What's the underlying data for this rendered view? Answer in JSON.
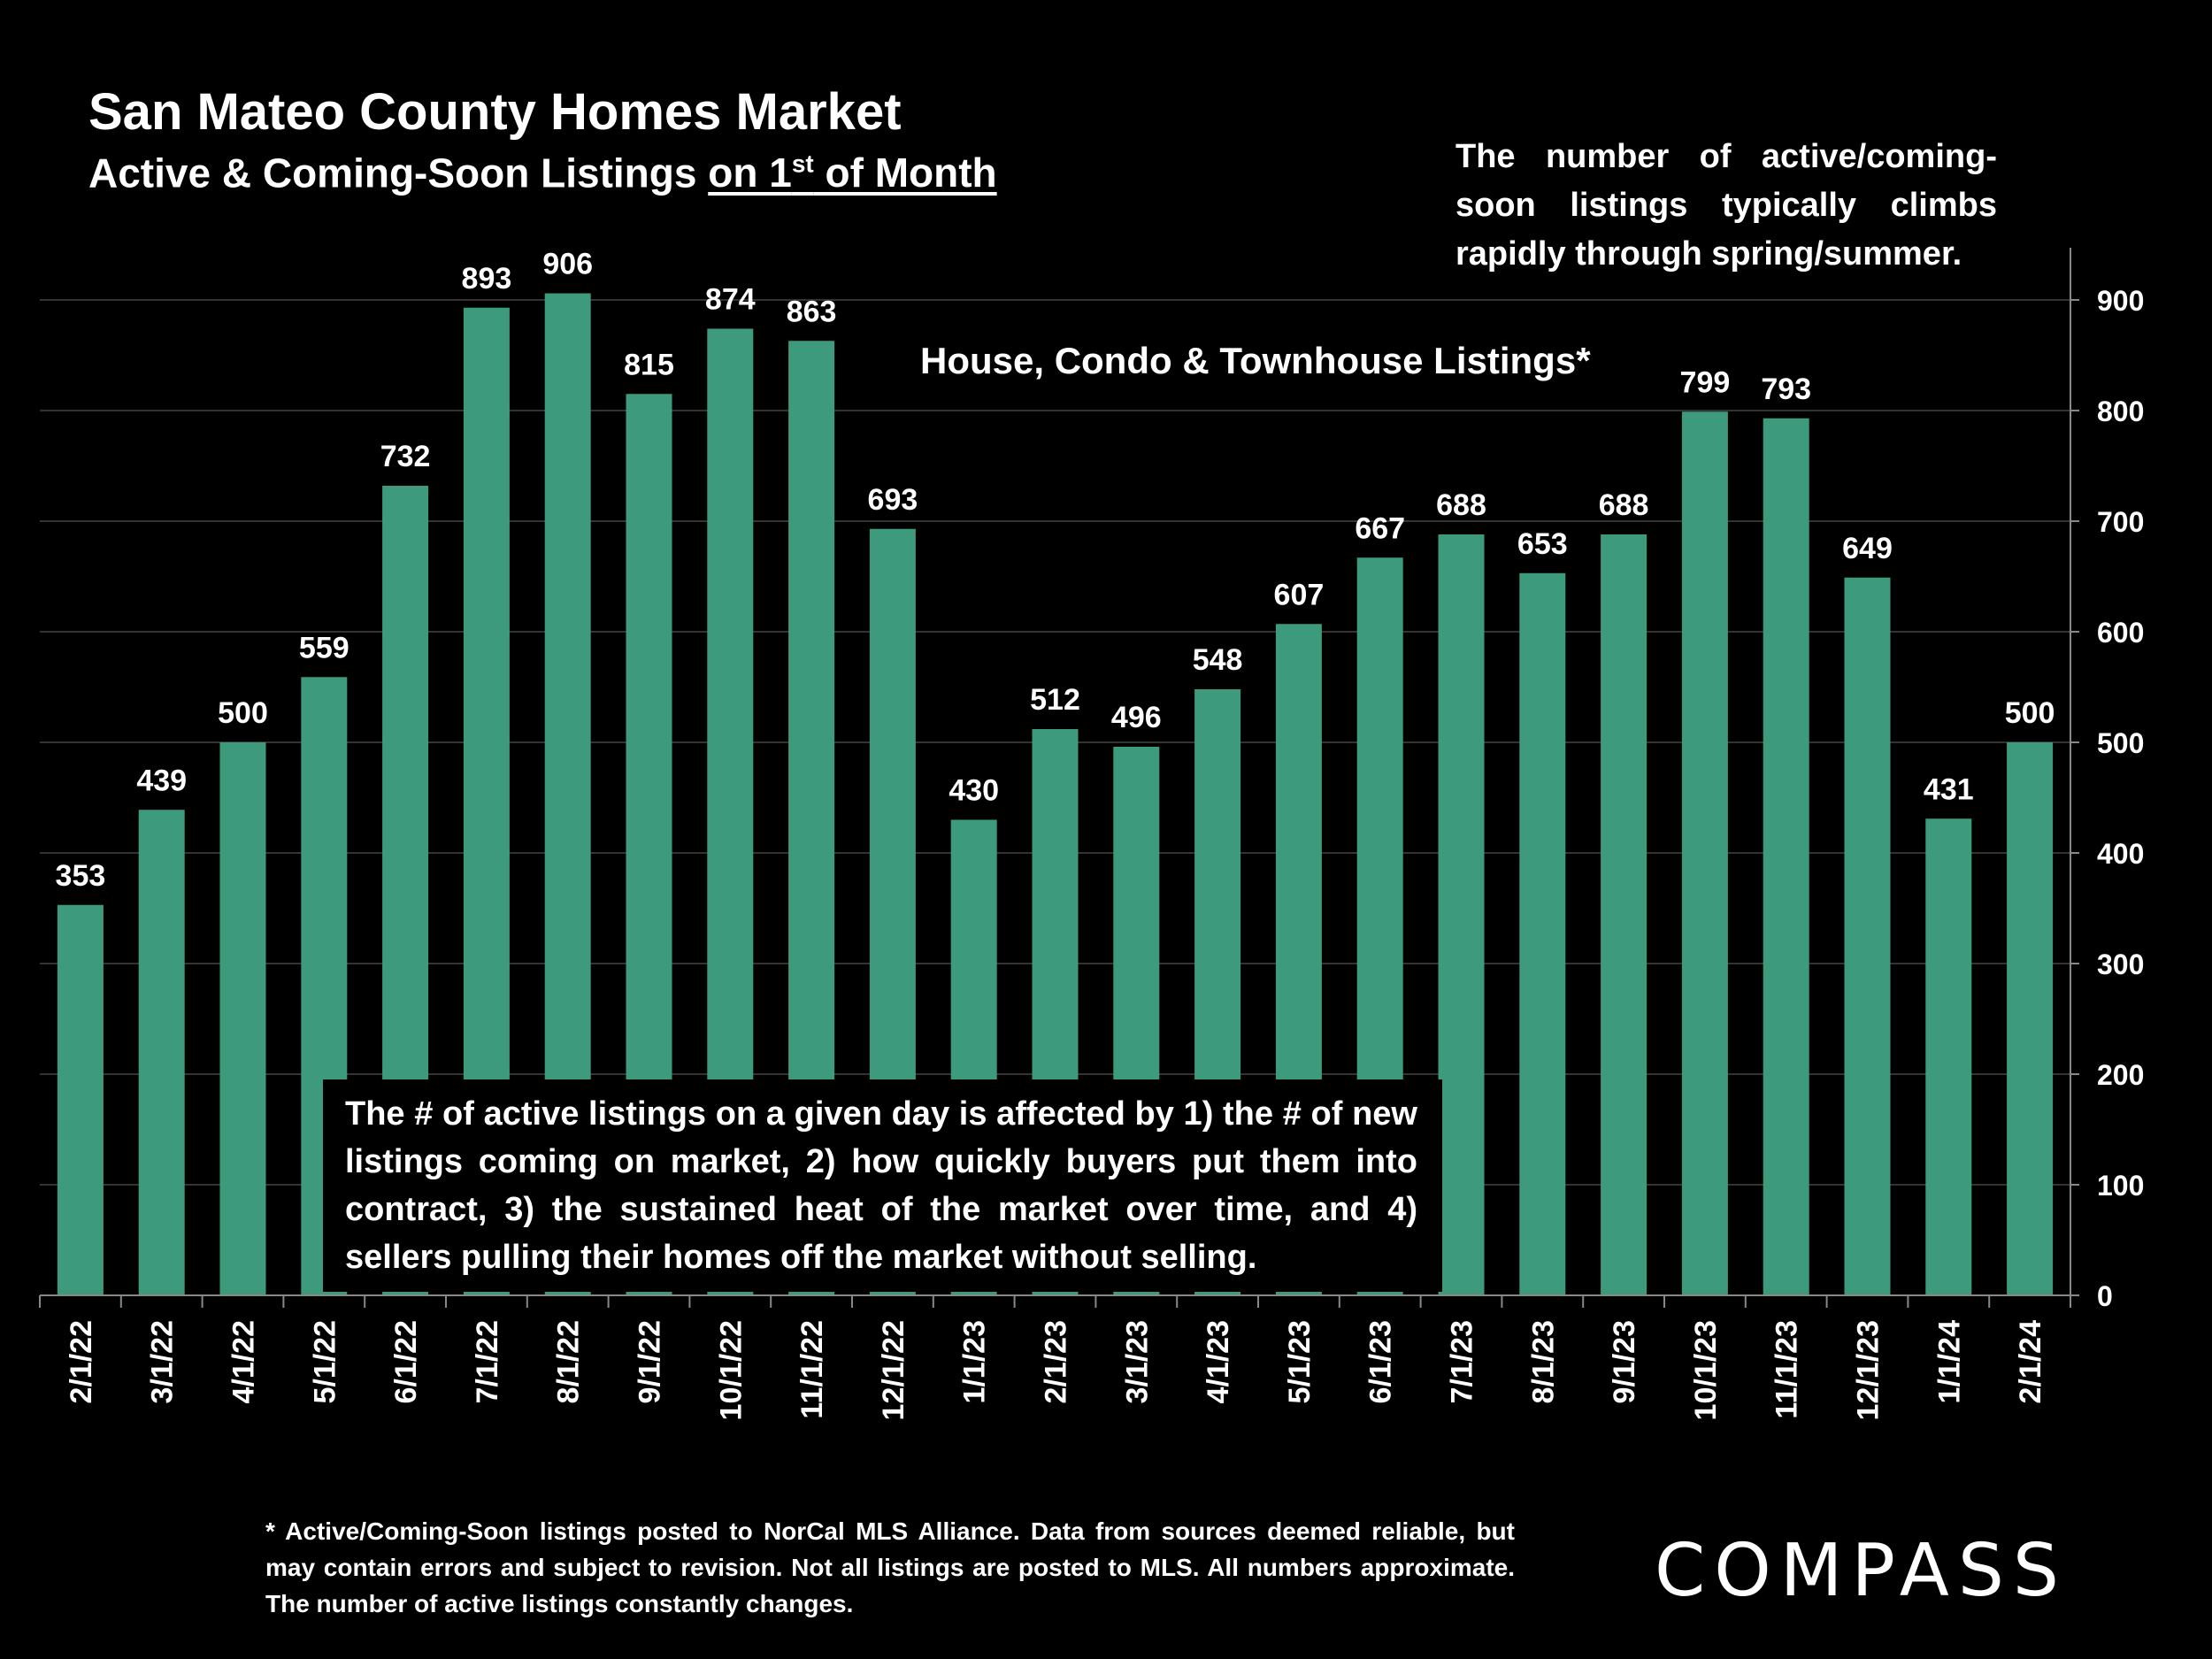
{
  "header": {
    "title": "San Mateo County Homes Market",
    "subtitle_pre": "Active & Coming-Soon Listings ",
    "subtitle_underlined": "on 1",
    "subtitle_sup": "st",
    "subtitle_post": " of Month"
  },
  "notes": {
    "top_right": "The number of active/coming-soon listings typically climbs rapidly through spring/summer.",
    "chart_label": "House, Condo & Townhouse Listings*",
    "annotation": "The # of active listings on a given day is affected by 1) the # of new listings coming on market, 2) how quickly buyers put them into contract, 3) the sustained heat of the market over time, and 4) sellers pulling their homes off the market without selling.",
    "footnote": "* Active/Coming-Soon listings posted to NorCal MLS Alliance.  Data from sources deemed reliable, but may contain errors and subject to revision.  Not all listings are posted to MLS. All numbers approximate. The number of active listings constantly changes."
  },
  "logo": "COMPASS",
  "colors": {
    "bar": "#3d9a7d",
    "background": "#000000",
    "text": "#ffffff",
    "grid": "#333333"
  },
  "chart_data": {
    "type": "bar",
    "categories": [
      "2/1/22",
      "3/1/22",
      "4/1/22",
      "5/1/22",
      "6/1/22",
      "7/1/22",
      "8/1/22",
      "9/1/22",
      "10/1/22",
      "11/1/22",
      "12/1/22",
      "1/1/23",
      "2/1/23",
      "3/1/23",
      "4/1/23",
      "5/1/23",
      "6/1/23",
      "7/1/23",
      "8/1/23",
      "9/1/23",
      "10/1/23",
      "11/1/23",
      "12/1/23",
      "1/1/24",
      "2/1/24"
    ],
    "values": [
      353,
      439,
      500,
      559,
      732,
      893,
      906,
      815,
      874,
      863,
      693,
      430,
      512,
      496,
      548,
      607,
      667,
      688,
      653,
      688,
      799,
      793,
      649,
      431,
      500
    ],
    "ylim": [
      0,
      900
    ],
    "yticks": [
      0,
      100,
      200,
      300,
      400,
      500,
      600,
      700,
      800,
      900
    ],
    "y_axis_side": "right",
    "grid": true,
    "data_labels": true
  }
}
